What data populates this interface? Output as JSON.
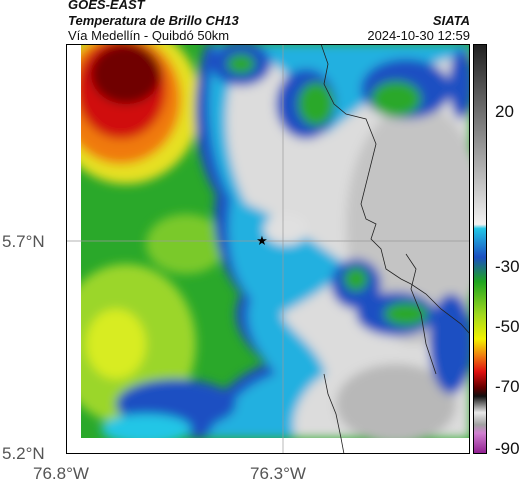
{
  "header": {
    "satellite": "GOES-EAST",
    "product": "Temperatura de Brillo CH13",
    "route": "Vía Medellín - Quibdó 50km",
    "organization": "SIATA",
    "timestamp": "2024-10-30 12:59"
  },
  "map": {
    "y_ticks": [
      "5.7°N",
      "5.2°N"
    ],
    "x_ticks": [
      "76.8°W",
      "76.3°W"
    ],
    "marker": "star",
    "grid": true
  },
  "colorbar": {
    "ticks": [
      "20",
      "-30",
      "-50",
      "-70",
      "-90"
    ],
    "colors": {
      "warm_gray_top": "#2a2a2a",
      "warm_gray_bottom": "#f2f2f2",
      "cyan": "#22c6e6",
      "blue": "#1b4fc2",
      "green": "#1ea51e",
      "yellow": "#f2f200",
      "red": "#e01010",
      "dark_red": "#600000",
      "magenta": "#c050c0"
    }
  }
}
